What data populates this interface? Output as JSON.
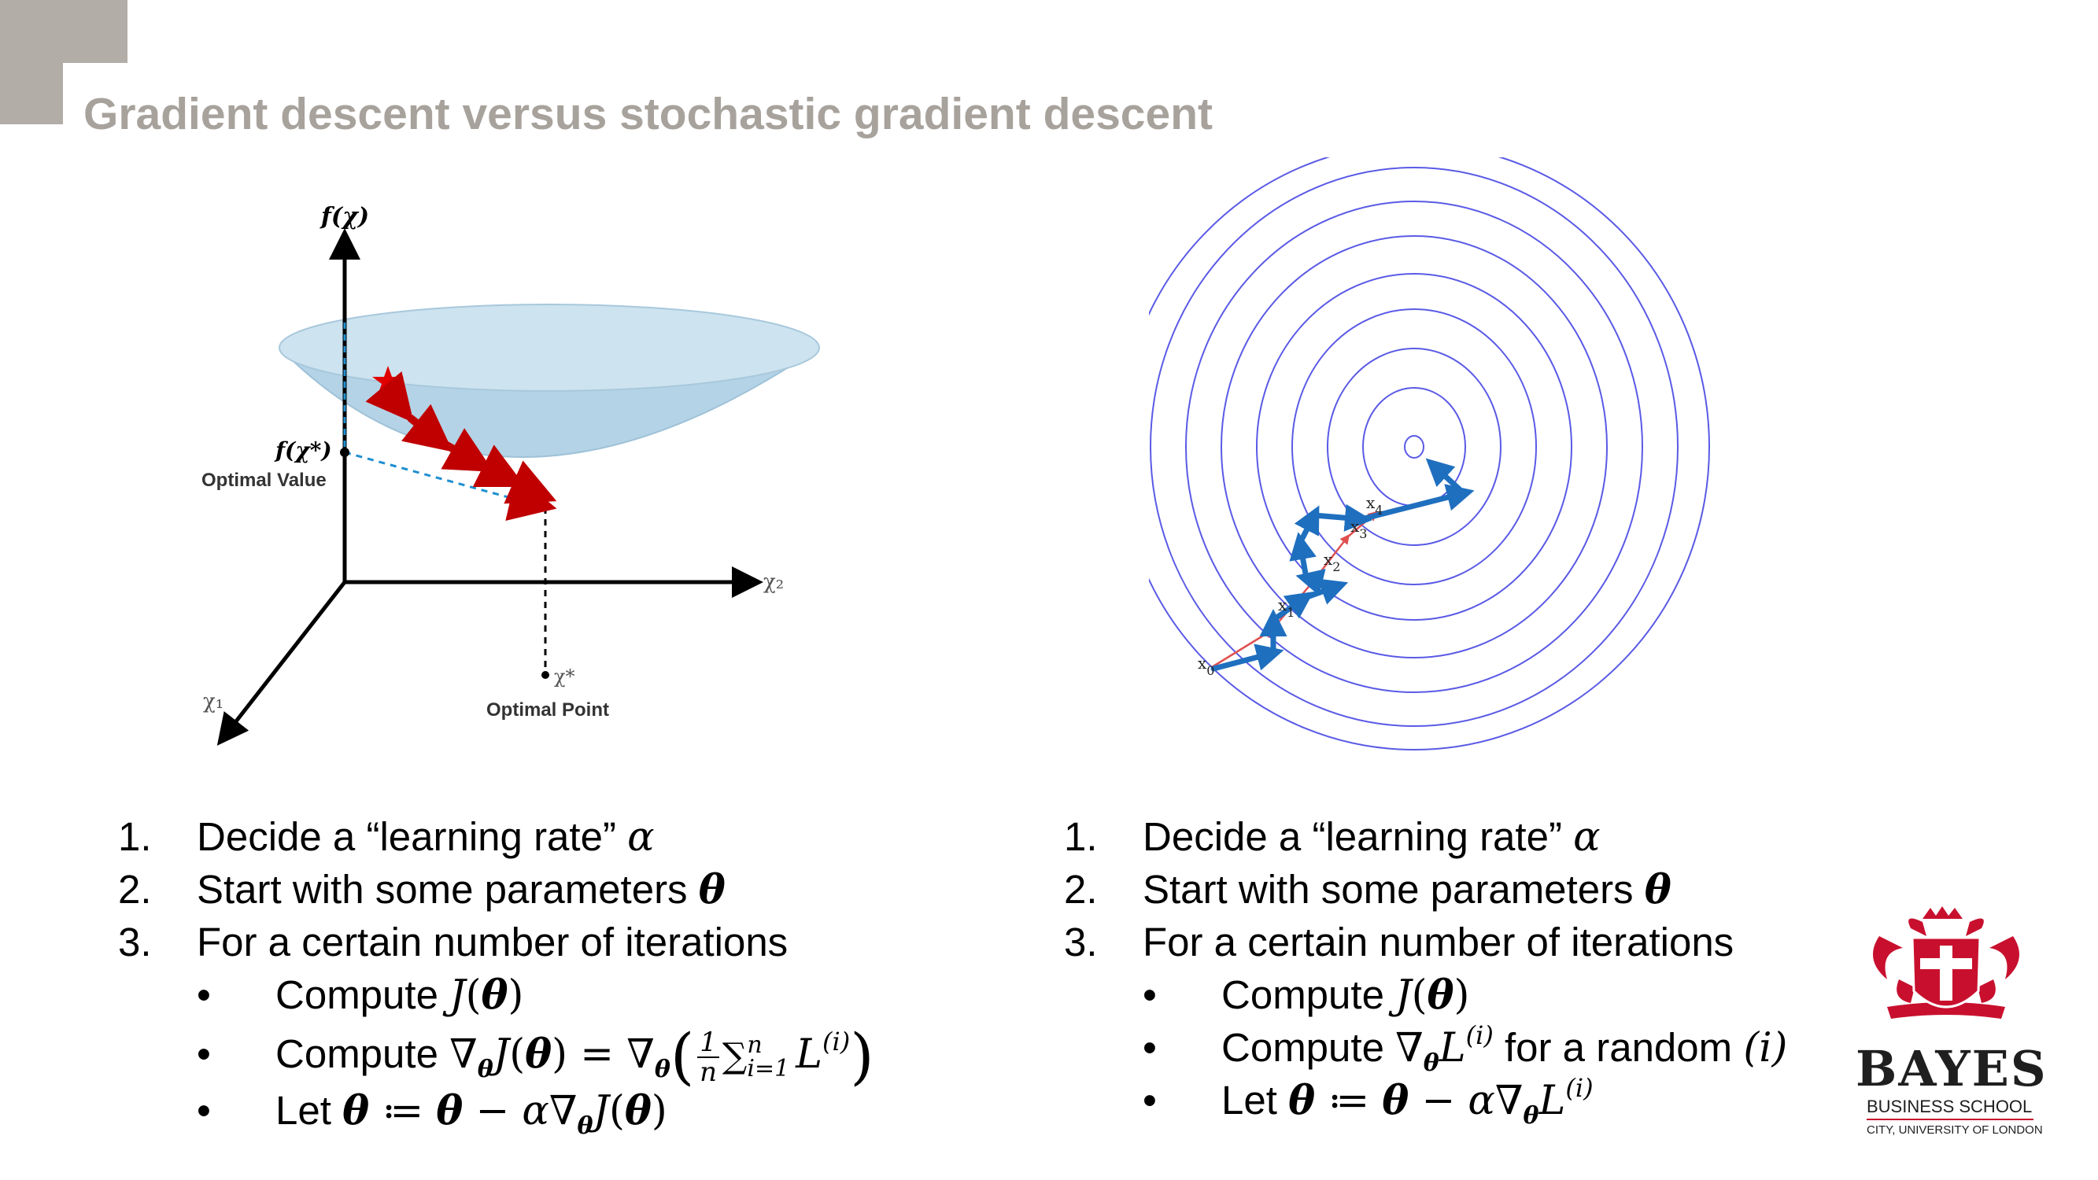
{
  "slide": {
    "title": "Gradient descent versus stochastic gradient descent"
  },
  "left_figure": {
    "y_axis_label": "f(χ)",
    "optimal_value_symbol": "f(χ*)",
    "optimal_value_label": "Optimal Value",
    "x2_label": "χ₂",
    "x1_label": "χ₁",
    "optimal_point_symbol": "χ*",
    "optimal_point_label": "Optimal Point"
  },
  "right_figure": {
    "points": [
      {
        "label": "x",
        "sub": "0"
      },
      {
        "label": "x",
        "sub": "1"
      },
      {
        "label": "x",
        "sub": "2"
      },
      {
        "label": "x",
        "sub": "3"
      },
      {
        "label": "x",
        "sub": "4"
      }
    ]
  },
  "left_steps": {
    "s1_num": "1.",
    "s1_text": "Decide a “learning rate” ",
    "s1_math": "α",
    "s2_num": "2.",
    "s2_text": "Start with some parameters ",
    "s2_math": "θ",
    "s3_num": "3.",
    "s3_text": "For a certain number of iterations",
    "b1_bullet": "•",
    "b1_text": "Compute ",
    "b1_J": "J",
    "b1_open": "(",
    "b1_theta": "θ",
    "b1_close": ")",
    "b2_bullet": "•",
    "b2_text": "Compute ",
    "b2_nabla": "∇",
    "b2_sub": "θ",
    "b2_J": "J",
    "b2_open": "(",
    "b2_theta": "θ",
    "b2_close": ")",
    "b2_eq": " = ",
    "b2_nabla2": "∇",
    "b2_sub2": "θ",
    "b2_lparen": "(",
    "b2_frac_num": "1",
    "b2_frac_den": "n",
    "b2_sum": "∑",
    "b2_sum_top": "n",
    "b2_sum_bottom": "i=1",
    "b2_L": "L",
    "b2_L_sup": "(i)",
    "b2_rparen": ")",
    "b3_bullet": "•",
    "b3_text": "Let ",
    "b3_theta": "θ",
    "b3_assign": " ≔ ",
    "b3_theta2": "θ",
    "b3_minus": " − ",
    "b3_alpha": "α",
    "b3_nabla": "∇",
    "b3_sub": "θ",
    "b3_J": "J",
    "b3_open": "(",
    "b3_theta3": "θ",
    "b3_close": ")"
  },
  "right_steps": {
    "s1_num": "1.",
    "s1_text": "Decide a “learning rate” ",
    "s1_math": "α",
    "s2_num": "2.",
    "s2_text": "Start with some parameters ",
    "s2_math": "θ",
    "s3_num": "3.",
    "s3_text": "For a certain number of iterations",
    "b1_bullet": "•",
    "b1_text": "Compute ",
    "b1_J": "J",
    "b1_open": "(",
    "b1_theta": "θ",
    "b1_close": ")",
    "b2_bullet": "•",
    "b2_text": "Compute ",
    "b2_nabla": "∇",
    "b2_sub": "θ",
    "b2_L": "L",
    "b2_L_sup": "(i)",
    "b2_text2": " for a random ",
    "b2_i": "(i)",
    "b3_bullet": "•",
    "b3_text": "Let ",
    "b3_theta": "θ",
    "b3_assign": " ≔ ",
    "b3_theta2": "θ",
    "b3_minus": " − ",
    "b3_alpha": "α",
    "b3_nabla": "∇",
    "b3_sub": "θ",
    "b3_L": "L",
    "b3_L_sup": "(i)"
  },
  "logo": {
    "name": "BAYES",
    "subtitle": "BUSINESS SCHOOL",
    "subtitle2": "CITY, UNIVERSITY OF LONDON",
    "crest_icon": "coat-of-arms-icon",
    "color_primary": "#c8102e"
  },
  "colors": {
    "title": "#a8a29c",
    "corner": "#b3ada7",
    "bowl": "#b4d3e6",
    "gd_arrows": "#c00000",
    "sgd_arrows": "#1f6fbf",
    "contours": "#5a5ae6"
  }
}
